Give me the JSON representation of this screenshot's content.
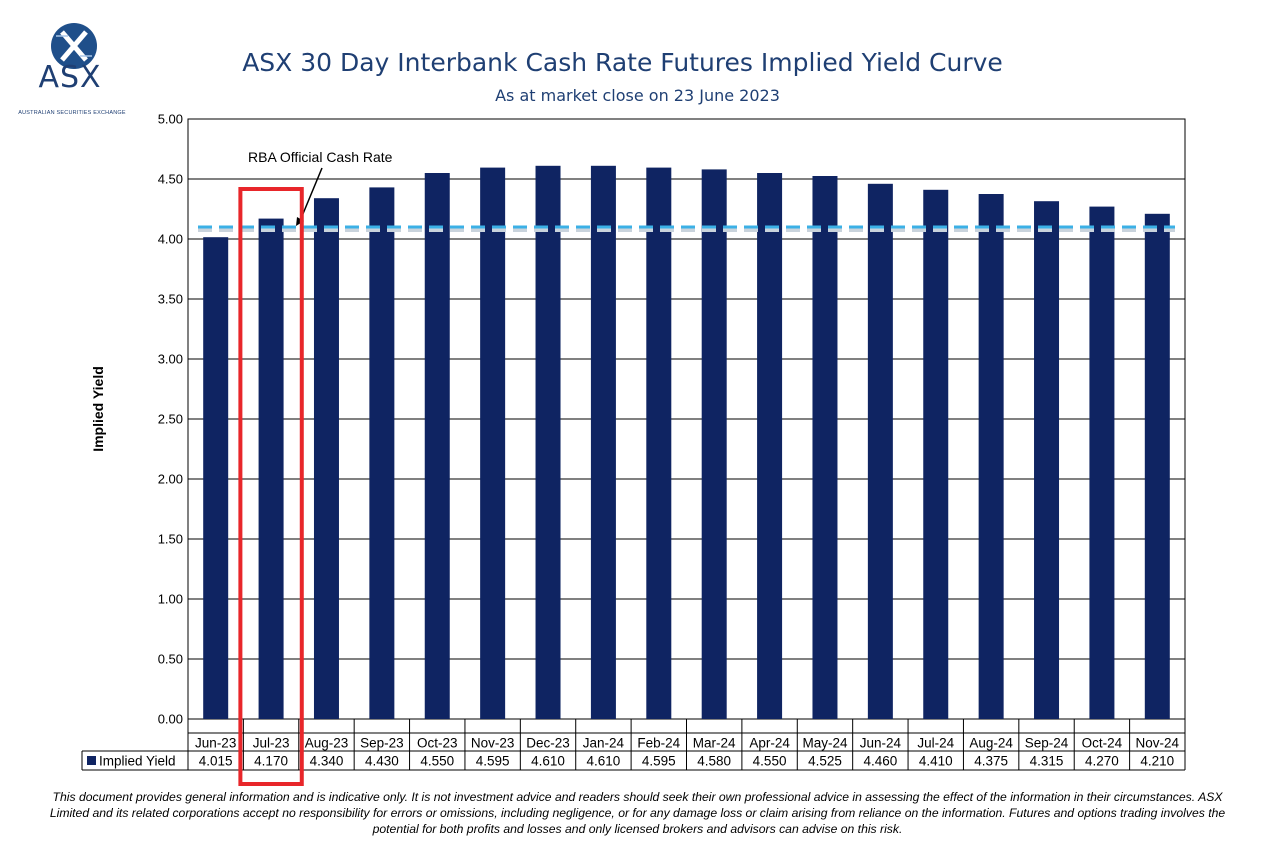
{
  "logo": {
    "text": "ASX",
    "subtext": "AUSTRALIAN SECURITIES EXCHANGE",
    "color": "#1f3f73"
  },
  "chart_data": {
    "type": "bar",
    "title": "ASX 30 Day Interbank Cash Rate Futures Implied Yield Curve",
    "subtitle": "As at market close on 23 June 2023",
    "ylabel": "Implied Yield",
    "xlabel": "",
    "ylim": [
      0,
      5
    ],
    "ytick_step": 0.5,
    "yticks": [
      "0.00",
      "0.50",
      "1.00",
      "1.50",
      "2.00",
      "2.50",
      "3.00",
      "3.50",
      "4.00",
      "4.50",
      "5.00"
    ],
    "grid": true,
    "categories": [
      "Jun-23",
      "Jul-23",
      "Aug-23",
      "Sep-23",
      "Oct-23",
      "Nov-23",
      "Dec-23",
      "Jan-24",
      "Feb-24",
      "Mar-24",
      "Apr-24",
      "May-24",
      "Jun-24",
      "Jul-24",
      "Aug-24",
      "Sep-24",
      "Oct-24",
      "Nov-24"
    ],
    "series": [
      {
        "name": "Implied Yield",
        "values": [
          4.015,
          4.17,
          4.34,
          4.43,
          4.55,
          4.595,
          4.61,
          4.61,
          4.595,
          4.58,
          4.55,
          4.525,
          4.46,
          4.41,
          4.375,
          4.315,
          4.27,
          4.21
        ],
        "labels": [
          "4.015",
          "4.170",
          "4.340",
          "4.430",
          "4.550",
          "4.595",
          "4.610",
          "4.610",
          "4.595",
          "4.580",
          "4.550",
          "4.525",
          "4.460",
          "4.410",
          "4.375",
          "4.315",
          "4.270",
          "4.210"
        ],
        "color": "#0f2462"
      }
    ],
    "reference_line": {
      "label": "RBA Official Cash Rate",
      "value": 4.1,
      "color": "#3bb0e6"
    },
    "highlight": {
      "category": "Jul-23",
      "color": "#e8262a"
    }
  },
  "disclaimer": "This document provides general information and is indicative only. It is not investment advice and readers should seek their own professional advice in assessing the effect of the information in their circumstances. ASX Limited and its related corporations accept no responsibility for errors or omissions, including negligence, or for any damage loss or claim arising from reliance on the information. Futures and options trading involves the potential for both profits and losses and only licensed brokers and advisors can advise on this risk."
}
